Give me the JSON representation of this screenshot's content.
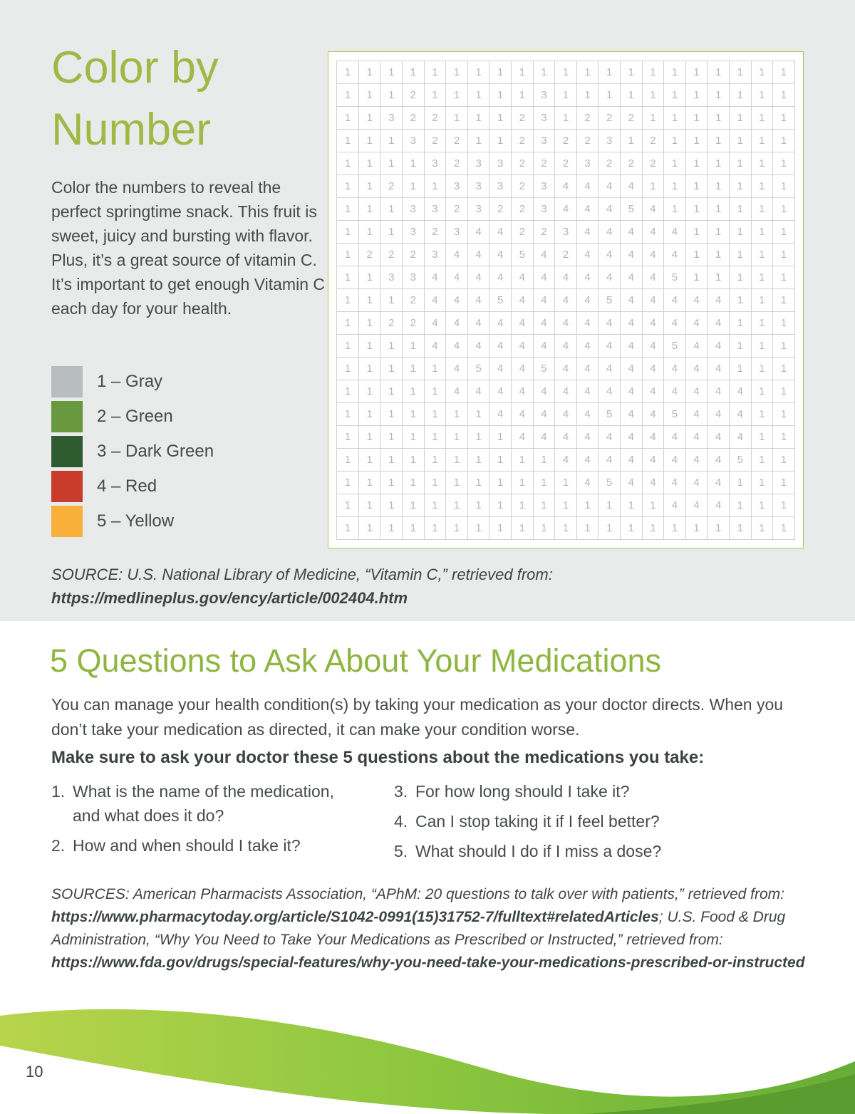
{
  "colors": {
    "panel_bg": "#e9eaea",
    "title_green": "#a0b946",
    "heading_green": "#8fb541",
    "grid_border_green": "#aec45c",
    "wave_light_green": "#b7d44c",
    "wave_mid_green": "#8cc63f",
    "wave_dark_green": "#66ad35",
    "wave_accent_green": "#58992e"
  },
  "color_by_number": {
    "title": "Color by Number",
    "intro": "Color the numbers to reveal the perfect springtime snack. This fruit is sweet, juicy and bursting with flavor. Plus, it’s a great source of vitamin C. It’s important to get enough Vitamin C each day for your health."
  },
  "legend": {
    "items": [
      {
        "key": "gray",
        "value": 1,
        "label": "1 – Gray",
        "color": "#b8bdc0"
      },
      {
        "key": "green",
        "value": 2,
        "label": "2 – Green",
        "color": "#68993f"
      },
      {
        "key": "dark-green",
        "value": 3,
        "label": "3 – Dark Green",
        "color": "#2f5b31"
      },
      {
        "key": "red",
        "value": 4,
        "label": "4 – Red",
        "color": "#c93b2a"
      },
      {
        "key": "yellow",
        "value": 5,
        "label": "5 – Yellow",
        "color": "#f8b03a"
      }
    ]
  },
  "grid": {
    "rows": [
      [
        1,
        1,
        1,
        1,
        1,
        1,
        1,
        1,
        1,
        1,
        1,
        1,
        1,
        1,
        1,
        1,
        1,
        1,
        1,
        1,
        1
      ],
      [
        1,
        1,
        1,
        2,
        1,
        1,
        1,
        1,
        1,
        3,
        1,
        1,
        1,
        1,
        1,
        1,
        1,
        1,
        1,
        1,
        1
      ],
      [
        1,
        1,
        3,
        2,
        2,
        1,
        1,
        1,
        2,
        3,
        1,
        2,
        2,
        2,
        1,
        1,
        1,
        1,
        1,
        1,
        1
      ],
      [
        1,
        1,
        1,
        3,
        2,
        2,
        1,
        1,
        2,
        3,
        2,
        2,
        3,
        1,
        2,
        1,
        1,
        1,
        1,
        1,
        1
      ],
      [
        1,
        1,
        1,
        1,
        3,
        2,
        3,
        3,
        2,
        2,
        2,
        3,
        2,
        2,
        2,
        1,
        1,
        1,
        1,
        1,
        1
      ],
      [
        1,
        1,
        2,
        1,
        1,
        3,
        3,
        3,
        2,
        3,
        4,
        4,
        4,
        4,
        1,
        1,
        1,
        1,
        1,
        1,
        1
      ],
      [
        1,
        1,
        1,
        3,
        3,
        2,
        3,
        2,
        2,
        3,
        4,
        4,
        4,
        5,
        4,
        1,
        1,
        1,
        1,
        1,
        1
      ],
      [
        1,
        1,
        1,
        3,
        2,
        3,
        4,
        4,
        2,
        2,
        3,
        4,
        4,
        4,
        4,
        4,
        1,
        1,
        1,
        1,
        1
      ],
      [
        1,
        2,
        2,
        2,
        3,
        4,
        4,
        4,
        5,
        4,
        2,
        4,
        4,
        4,
        4,
        4,
        1,
        1,
        1,
        1,
        1
      ],
      [
        1,
        1,
        3,
        3,
        4,
        4,
        4,
        4,
        4,
        4,
        4,
        4,
        4,
        4,
        4,
        5,
        1,
        1,
        1,
        1,
        1
      ],
      [
        1,
        1,
        1,
        2,
        4,
        4,
        4,
        5,
        4,
        4,
        4,
        4,
        5,
        4,
        4,
        4,
        4,
        4,
        1,
        1,
        1
      ],
      [
        1,
        1,
        2,
        2,
        4,
        4,
        4,
        4,
        4,
        4,
        4,
        4,
        4,
        4,
        4,
        4,
        4,
        4,
        1,
        1,
        1
      ],
      [
        1,
        1,
        1,
        1,
        4,
        4,
        4,
        4,
        4,
        4,
        4,
        4,
        4,
        4,
        4,
        5,
        4,
        4,
        1,
        1,
        1
      ],
      [
        1,
        1,
        1,
        1,
        1,
        4,
        5,
        4,
        4,
        5,
        4,
        4,
        4,
        4,
        4,
        4,
        4,
        4,
        1,
        1,
        1
      ],
      [
        1,
        1,
        1,
        1,
        1,
        4,
        4,
        4,
        4,
        4,
        4,
        4,
        4,
        4,
        4,
        4,
        4,
        4,
        4,
        1,
        1
      ],
      [
        1,
        1,
        1,
        1,
        1,
        1,
        1,
        4,
        4,
        4,
        4,
        4,
        5,
        4,
        4,
        5,
        4,
        4,
        4,
        1,
        1
      ],
      [
        1,
        1,
        1,
        1,
        1,
        1,
        1,
        1,
        4,
        4,
        4,
        4,
        4,
        4,
        4,
        4,
        4,
        4,
        4,
        1,
        1
      ],
      [
        1,
        1,
        1,
        1,
        1,
        1,
        1,
        1,
        1,
        1,
        4,
        4,
        4,
        4,
        4,
        4,
        4,
        4,
        5,
        1,
        1
      ],
      [
        1,
        1,
        1,
        1,
        1,
        1,
        1,
        1,
        1,
        1,
        1,
        4,
        5,
        4,
        4,
        4,
        4,
        4,
        1,
        1,
        1
      ],
      [
        1,
        1,
        1,
        1,
        1,
        1,
        1,
        1,
        1,
        1,
        1,
        1,
        1,
        1,
        1,
        4,
        4,
        4,
        1,
        1,
        1
      ],
      [
        1,
        1,
        1,
        1,
        1,
        1,
        1,
        1,
        1,
        1,
        1,
        1,
        1,
        1,
        1,
        1,
        1,
        1,
        1,
        1,
        1
      ]
    ]
  },
  "vitamin_source": {
    "parts": [
      {
        "text": "SOURCE: U.S. National Library of Medicine, “Vitamin C,” retrieved from: ",
        "bold": false
      },
      {
        "text": "https://medlineplus.gov/ency/article/002404.htm",
        "bold": true
      }
    ]
  },
  "medications": {
    "heading": "5 Questions to Ask About Your Medications",
    "intro": "You can manage your health condition(s) by taking your medication as your doctor directs. When you don’t take your medication as directed, it can make your condition worse.",
    "prompt": "Make sure to ask your doctor these 5 questions about the medications you take:",
    "questions": [
      {
        "num": 1,
        "text": "What is the name of the medication, and what does it do?"
      },
      {
        "num": 2,
        "text": "How and when should I take it?"
      },
      {
        "num": 3,
        "text": "For how long should I take it?"
      },
      {
        "num": 4,
        "text": "Can I stop taking it if I feel better?"
      },
      {
        "num": 5,
        "text": "What should I do if I miss a dose?"
      }
    ],
    "sources": {
      "parts": [
        {
          "text": "SOURCES: American Pharmacists Association, “APhM: 20 questions to talk over with patients,” retrieved from: ",
          "bold": false
        },
        {
          "text": "https://www.pharmacytoday.org/article/S1042-0991(15)31752-7/fulltext#relatedArticles",
          "bold": true
        },
        {
          "text": "; U.S. Food & Drug Administration, “Why You Need to Take Your Medications as Prescribed or Instructed,” retrieved from: ",
          "bold": false
        },
        {
          "text": "https://www.fda.gov/drugs/special-features/why-you-need-take-your-medications-prescribed-or-instructed",
          "bold": true
        }
      ]
    }
  },
  "footer": {
    "page_number": "10"
  }
}
